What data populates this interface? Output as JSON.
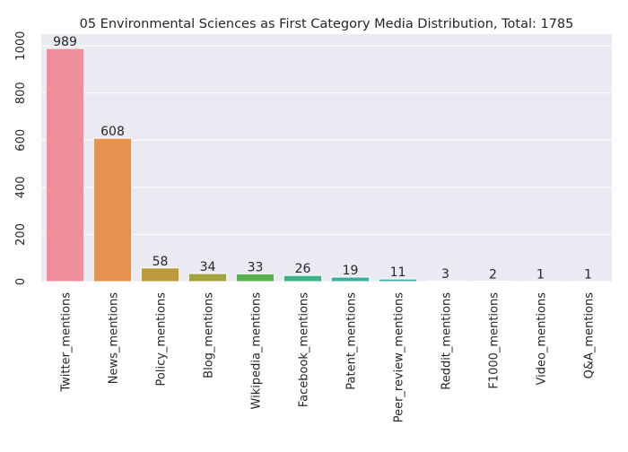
{
  "chart_data": {
    "type": "bar",
    "title": "05 Environmental Sciences as First Category Media Distribution, Total: 1785",
    "xlabel": "",
    "ylabel": "",
    "categories": [
      "Twitter_mentions",
      "News_mentions",
      "Policy_mentions",
      "Blog_mentions",
      "Wikipedia_mentions",
      "Facebook_mentions",
      "Patent_mentions",
      "Peer_review_mentions",
      "Reddit_mentions",
      "F1000_mentions",
      "Video_mentions",
      "Q&A_mentions"
    ],
    "values": [
      989,
      608,
      58,
      34,
      33,
      26,
      19,
      11,
      3,
      2,
      1,
      1
    ],
    "data_labels": [
      "989",
      "608",
      "58",
      "34",
      "33",
      "26",
      "19",
      "11",
      "3",
      "2",
      "1",
      "1"
    ],
    "colors": [
      "#f08f9c",
      "#e6924f",
      "#bb9a3c",
      "#a3a23c",
      "#59b14b",
      "#3db284",
      "#3cae9f",
      "#3fabb8",
      "#4aa5d1",
      "#8a9fe8",
      "#cc8ce6",
      "#eb86c8"
    ],
    "ylim": [
      0,
      1050
    ],
    "yticks": [
      0,
      200,
      400,
      600,
      800,
      1000
    ],
    "ytick_labels": [
      "0",
      "200",
      "400",
      "600",
      "800",
      "1000"
    ],
    "grid": true,
    "background": "#eaeaf2",
    "legend": "none"
  }
}
